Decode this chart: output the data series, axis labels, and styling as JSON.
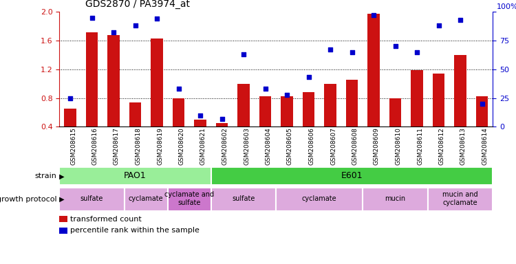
{
  "title": "GDS2870 / PA3974_at",
  "samples": [
    "GSM208615",
    "GSM208616",
    "GSM208617",
    "GSM208618",
    "GSM208619",
    "GSM208620",
    "GSM208621",
    "GSM208602",
    "GSM208603",
    "GSM208604",
    "GSM208605",
    "GSM208606",
    "GSM208607",
    "GSM208608",
    "GSM208609",
    "GSM208610",
    "GSM208611",
    "GSM208612",
    "GSM208613",
    "GSM208614"
  ],
  "transformed_count": [
    0.65,
    1.72,
    1.68,
    0.74,
    1.63,
    0.8,
    0.5,
    0.45,
    1.0,
    0.82,
    0.82,
    0.88,
    1.0,
    1.05,
    1.97,
    0.8,
    1.19,
    1.14,
    1.4,
    0.82
  ],
  "percentile_rank": [
    25,
    95,
    82,
    88,
    94,
    33,
    10,
    7,
    63,
    33,
    28,
    43,
    67,
    65,
    97,
    70,
    65,
    88,
    93,
    20
  ],
  "ylim_left": [
    0.4,
    2.0
  ],
  "ylim_right": [
    0,
    100
  ],
  "yticks_left": [
    0.4,
    0.8,
    1.2,
    1.6,
    2.0
  ],
  "yticks_right": [
    0,
    25,
    50,
    75,
    100
  ],
  "bar_color": "#cc1111",
  "dot_color": "#0000cc",
  "background_color": "#ffffff",
  "strain_pao1": {
    "text": "PAO1",
    "start": 0,
    "end": 6,
    "color": "#99ee99"
  },
  "strain_e601": {
    "text": "E601",
    "start": 7,
    "end": 19,
    "color": "#44cc44"
  },
  "protocol_labels": [
    {
      "text": "sulfate",
      "start": 0,
      "end": 2,
      "color": "#ddaadd"
    },
    {
      "text": "cyclamate",
      "start": 3,
      "end": 4,
      "color": "#ddaadd"
    },
    {
      "text": "cyclamate and\nsulfate",
      "start": 5,
      "end": 6,
      "color": "#cc77cc"
    },
    {
      "text": "sulfate",
      "start": 7,
      "end": 9,
      "color": "#ddaadd"
    },
    {
      "text": "cyclamate",
      "start": 10,
      "end": 13,
      "color": "#ddaadd"
    },
    {
      "text": "mucin",
      "start": 14,
      "end": 16,
      "color": "#ddaadd"
    },
    {
      "text": "mucin and\ncyclamate",
      "start": 17,
      "end": 19,
      "color": "#ddaadd"
    }
  ],
  "legend_items": [
    {
      "label": "transformed count",
      "color": "#cc1111"
    },
    {
      "label": "percentile rank within the sample",
      "color": "#0000cc"
    }
  ],
  "grid_yticks": [
    0.8,
    1.2,
    1.6
  ],
  "bar_width": 0.55
}
